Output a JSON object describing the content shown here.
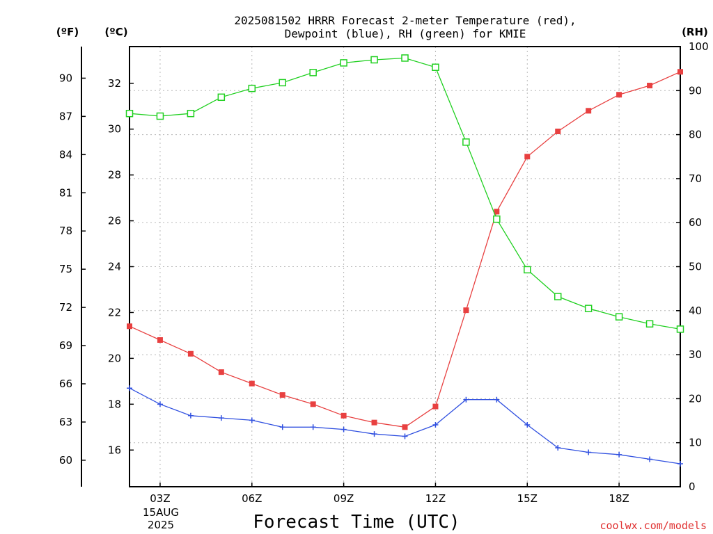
{
  "chart_data": {
    "type": "line",
    "title_line1": "2025081502 HRRR Forecast 2-meter Temperature (red),",
    "title_line2": "Dewpoint (blue), RH (green) for KMIE",
    "left_axis_f_unit": "(ºF)",
    "left_axis_c_unit": "(ºC)",
    "right_axis_unit": "(RH)",
    "xlabel": "Forecast Time (UTC)",
    "date_line1": "15AUG",
    "date_line2": "2025",
    "credit": "coolwx.com/models",
    "x_hours": [
      2,
      3,
      4,
      5,
      6,
      7,
      8,
      9,
      10,
      11,
      12,
      13,
      14,
      15,
      16,
      17,
      18,
      19,
      20
    ],
    "x_ticks": [
      {
        "hour": 3,
        "label": "03Z"
      },
      {
        "hour": 6,
        "label": "06Z"
      },
      {
        "hour": 9,
        "label": "09Z"
      },
      {
        "hour": 12,
        "label": "12Z"
      },
      {
        "hour": 15,
        "label": "15Z"
      },
      {
        "hour": 18,
        "label": "18Z"
      }
    ],
    "xlim": [
      2,
      20
    ],
    "ylim_c": [
      14.4,
      33.6
    ],
    "c_ticks": [
      16,
      18,
      20,
      22,
      24,
      26,
      28,
      30,
      32
    ],
    "f_ticks": [
      60,
      63,
      66,
      69,
      72,
      75,
      78,
      81,
      84,
      87,
      90
    ],
    "rh_ticks": [
      0,
      10,
      20,
      30,
      40,
      50,
      60,
      70,
      80,
      90,
      100
    ],
    "ylim_rh": [
      0,
      100
    ],
    "grid": true,
    "series": [
      {
        "name": "Temperature",
        "color": "#e84040",
        "marker": "filled-square",
        "values": [
          21.4,
          20.8,
          20.2,
          19.4,
          18.9,
          18.4,
          18.0,
          17.5,
          17.2,
          17.0,
          17.9,
          22.1,
          26.4,
          28.8,
          29.9,
          30.8,
          31.5,
          31.9,
          32.5
        ]
      },
      {
        "name": "Dewpoint",
        "color": "#3050e0",
        "marker": "plus",
        "values": [
          18.7,
          18.0,
          17.5,
          17.4,
          17.3,
          17.0,
          17.0,
          16.9,
          16.7,
          16.6,
          17.1,
          18.2,
          18.2,
          17.1,
          16.1,
          15.9,
          15.8,
          15.6,
          15.4
        ]
      },
      {
        "name": "RH",
        "color": "#20d020",
        "marker": "open-square",
        "axis": "right",
        "values": [
          84.8,
          84.2,
          84.8,
          88.5,
          90.5,
          91.8,
          94.1,
          96.3,
          97.0,
          97.4,
          95.3,
          78.3,
          60.8,
          49.3,
          43.2,
          40.5,
          38.6,
          37.0,
          35.8
        ]
      }
    ]
  }
}
